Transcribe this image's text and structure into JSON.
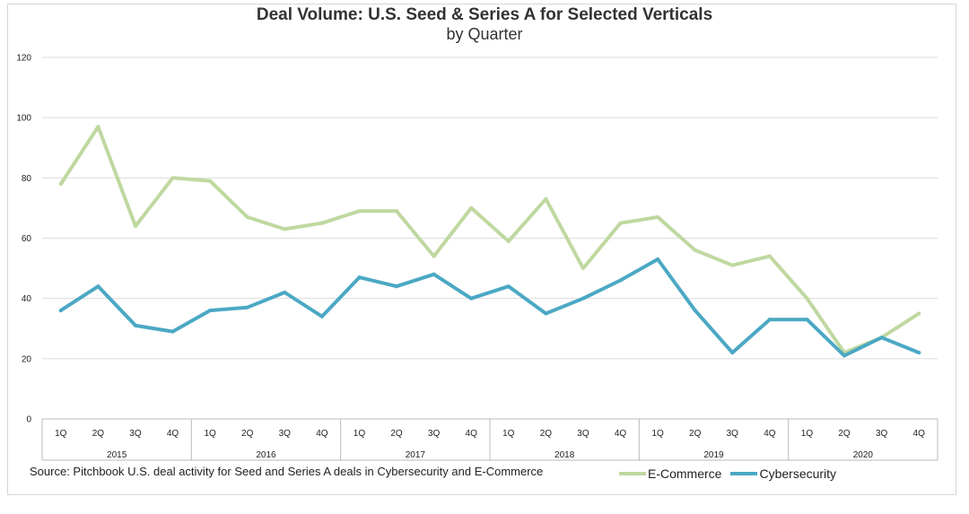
{
  "chart_data": {
    "type": "line",
    "title": "Deal Volume: U.S. Seed & Series A for Selected Verticals",
    "subtitle": "by Quarter",
    "quarters": [
      "1Q",
      "2Q",
      "3Q",
      "4Q",
      "1Q",
      "2Q",
      "3Q",
      "4Q",
      "1Q",
      "2Q",
      "3Q",
      "4Q",
      "1Q",
      "2Q",
      "3Q",
      "4Q",
      "1Q",
      "2Q",
      "3Q",
      "4Q",
      "1Q",
      "2Q",
      "3Q",
      "4Q"
    ],
    "years": [
      "2015",
      "2016",
      "2017",
      "2018",
      "2019",
      "2020"
    ],
    "ylim": [
      0,
      120
    ],
    "yticks": [
      "0",
      "20",
      "40",
      "60",
      "80",
      "100",
      "120"
    ],
    "grid": true,
    "legend_position": "bottom-right",
    "series": [
      {
        "name": "E-Commerce",
        "color": "#bfd8a0",
        "values": [
          78,
          97,
          64,
          80,
          79,
          67,
          63,
          65,
          69,
          69,
          54,
          70,
          59,
          73,
          50,
          65,
          67,
          56,
          51,
          54,
          40,
          22,
          27,
          35
        ]
      },
      {
        "name": "Cybersecurity",
        "color": "#4ba8c4",
        "values": [
          36,
          44,
          31,
          29,
          36,
          37,
          42,
          34,
          47,
          44,
          48,
          40,
          44,
          35,
          40,
          46,
          53,
          36,
          22,
          33,
          33,
          21,
          27,
          22
        ]
      }
    ],
    "source": "Source: Pitchbook U.S. deal activity for Seed and Series A deals in Cybersecurity and E-Commerce"
  }
}
